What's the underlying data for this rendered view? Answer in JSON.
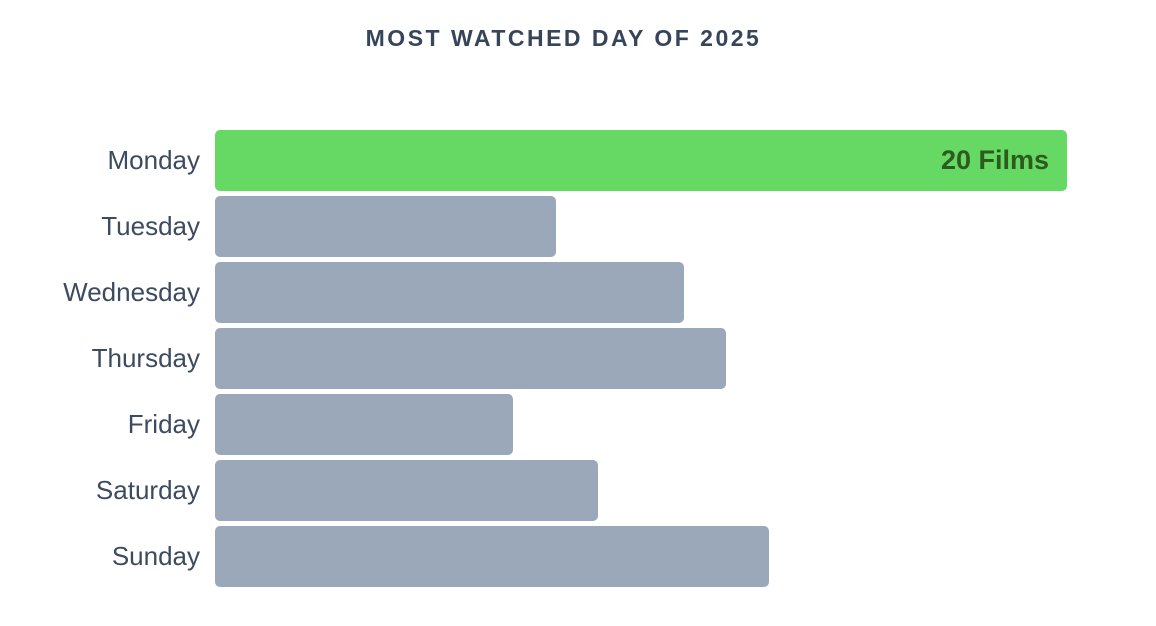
{
  "page": {
    "background": "#ffffff"
  },
  "chart_data": {
    "type": "bar",
    "orientation": "horizontal",
    "title": "MOST WATCHED DAY OF 2025",
    "categories": [
      "Monday",
      "Tuesday",
      "Wednesday",
      "Thursday",
      "Friday",
      "Saturday",
      "Sunday"
    ],
    "values": [
      20,
      8,
      11,
      12,
      7,
      9,
      13
    ],
    "xlim": [
      0,
      20
    ],
    "grid": false,
    "legend": false,
    "axis_ticks": false,
    "highlight_category": "Monday",
    "data_labels": [
      {
        "category": "Monday",
        "label": "20 Films"
      }
    ],
    "colors": {
      "highlight_bar": "#66d964",
      "default_bar": "#9aa8ba",
      "title_text": "#36455a",
      "category_text": "#3c4b5f",
      "data_label_text": "#2d5a1e"
    }
  }
}
